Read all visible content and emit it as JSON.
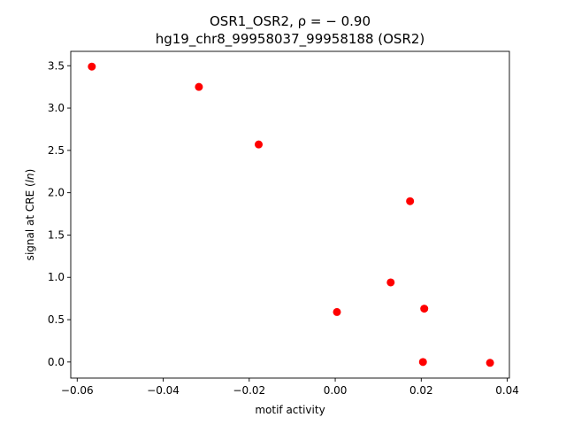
{
  "chart_data": {
    "type": "scatter",
    "title": "OSR1_OSR2, ρ = − 0.90",
    "subtitle": "hg19_chr8_99958037_99958188 (OSR2)",
    "xlabel": "motif activity",
    "ylabel_prefix": "signal at CRE (",
    "ylabel_italic": "ln",
    "ylabel_suffix": ")",
    "xlim": [
      -0.0615,
      0.0405
    ],
    "ylim": [
      -0.19,
      3.67
    ],
    "xticks": [
      -0.06,
      -0.04,
      -0.02,
      0.0,
      0.02,
      0.04
    ],
    "xtick_labels": [
      "−0.06",
      "−0.04",
      "−0.02",
      "0.00",
      "0.02",
      "0.04"
    ],
    "yticks": [
      0.0,
      0.5,
      1.0,
      1.5,
      2.0,
      2.5,
      3.0,
      3.5
    ],
    "ytick_labels": [
      "0.0",
      "0.5",
      "1.0",
      "1.5",
      "2.0",
      "2.5",
      "3.0",
      "3.5"
    ],
    "grid": false,
    "legend": "none",
    "marker_color": "#ff0000",
    "points": [
      {
        "x": -0.0566,
        "y": 3.49
      },
      {
        "x": -0.0317,
        "y": 3.25
      },
      {
        "x": -0.0178,
        "y": 2.57
      },
      {
        "x": 0.0174,
        "y": 1.9
      },
      {
        "x": 0.0129,
        "y": 0.94
      },
      {
        "x": 0.0004,
        "y": 0.59
      },
      {
        "x": 0.0207,
        "y": 0.63
      },
      {
        "x": 0.0204,
        "y": 0.0
      },
      {
        "x": 0.036,
        "y": -0.01
      }
    ]
  }
}
